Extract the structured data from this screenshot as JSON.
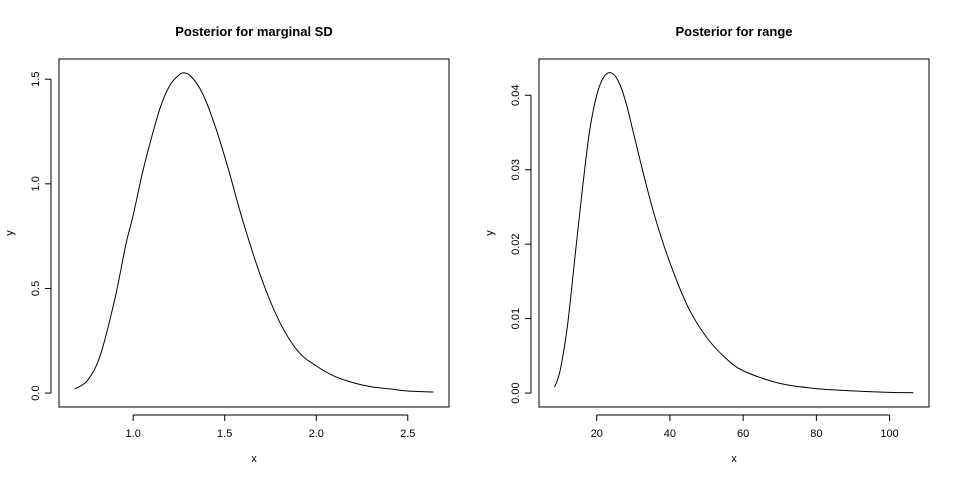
{
  "chart_data": [
    {
      "type": "line",
      "title": "Posterior for marginal SD",
      "xlabel": "x",
      "ylabel": "y",
      "xlim": [
        0.68,
        2.64
      ],
      "ylim": [
        0.0,
        1.53
      ],
      "xticks": [
        1.0,
        1.5,
        2.0,
        2.5
      ],
      "xtick_labels": [
        "1.0",
        "1.5",
        "2.0",
        "2.5"
      ],
      "yticks": [
        0.0,
        0.5,
        1.0,
        1.5
      ],
      "ytick_labels": [
        "0.0",
        "0.5",
        "1.0",
        "1.5"
      ],
      "grid": false,
      "series": [
        {
          "x": [
            0.68,
            0.75,
            0.82,
            0.9,
            0.96,
            1.0,
            1.05,
            1.1,
            1.15,
            1.2,
            1.25,
            1.28,
            1.32,
            1.38,
            1.45,
            1.52,
            1.6,
            1.7,
            1.8,
            1.9,
            2.0,
            2.1,
            2.2,
            2.3,
            2.4,
            2.5,
            2.64
          ],
          "y": [
            0.02,
            0.06,
            0.18,
            0.45,
            0.71,
            0.85,
            1.05,
            1.22,
            1.37,
            1.47,
            1.52,
            1.53,
            1.51,
            1.43,
            1.27,
            1.07,
            0.82,
            0.55,
            0.34,
            0.2,
            0.13,
            0.08,
            0.05,
            0.03,
            0.02,
            0.01,
            0.005
          ]
        }
      ]
    },
    {
      "type": "line",
      "title": "Posterior for range",
      "xlabel": "x",
      "ylabel": "y",
      "xlim": [
        8.5,
        106.5
      ],
      "ylim": [
        0.0,
        0.043
      ],
      "xticks": [
        20,
        40,
        60,
        80,
        100
      ],
      "xtick_labels": [
        "20",
        "40",
        "60",
        "80",
        "100"
      ],
      "yticks": [
        0.0,
        0.01,
        0.02,
        0.03,
        0.04
      ],
      "ytick_labels": [
        "0.00",
        "0.01",
        "0.02",
        "0.03",
        "0.04"
      ],
      "grid": false,
      "series": [
        {
          "x": [
            8.5,
            10,
            12,
            14,
            16,
            18,
            20,
            22,
            24,
            26,
            28,
            30,
            33,
            36,
            40,
            45,
            50,
            55,
            60,
            70,
            80,
            90,
            100,
            106.5
          ],
          "y": [
            0.0008,
            0.003,
            0.009,
            0.018,
            0.027,
            0.035,
            0.04,
            0.0425,
            0.043,
            0.0418,
            0.039,
            0.035,
            0.029,
            0.0235,
            0.0175,
            0.0115,
            0.0075,
            0.0048,
            0.003,
            0.0013,
            0.0006,
            0.0003,
            0.0001,
            5e-05
          ]
        }
      ]
    }
  ]
}
